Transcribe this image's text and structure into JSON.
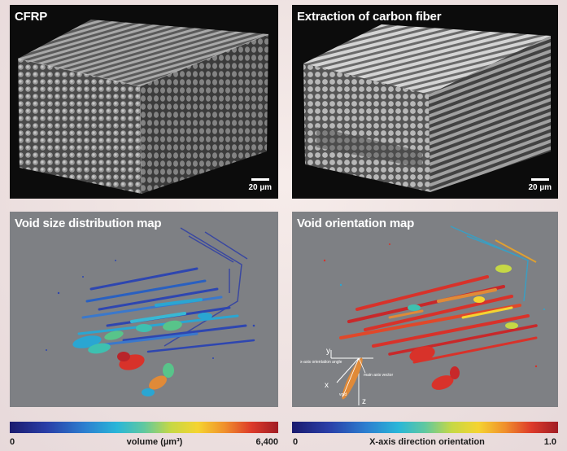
{
  "panels": {
    "cfrp": {
      "title": "CFRP",
      "scale_label": "20 µm"
    },
    "extraction": {
      "title": "Extraction of carbon fiber",
      "scale_label": "20 µm"
    },
    "void_size": {
      "title": "Void size distribution map"
    },
    "void_orientation": {
      "title": "Void orientation map",
      "inset": {
        "y_label": "y",
        "x_label": "x",
        "z_label": "z",
        "angle_label": "x-axis orientation angle",
        "vector_label": "main axis vector",
        "void_label": "void"
      }
    }
  },
  "colorbars": {
    "volume": {
      "min": "0",
      "label": "volume (µm³)",
      "max": "6,400"
    },
    "orientation": {
      "min": "0",
      "label": "X-axis direction orientation",
      "max": "1.0"
    }
  },
  "colors": {
    "panel_gray": "#7e8084",
    "dark_blue": "#1a1a6e",
    "red": "#dd3a2a"
  }
}
